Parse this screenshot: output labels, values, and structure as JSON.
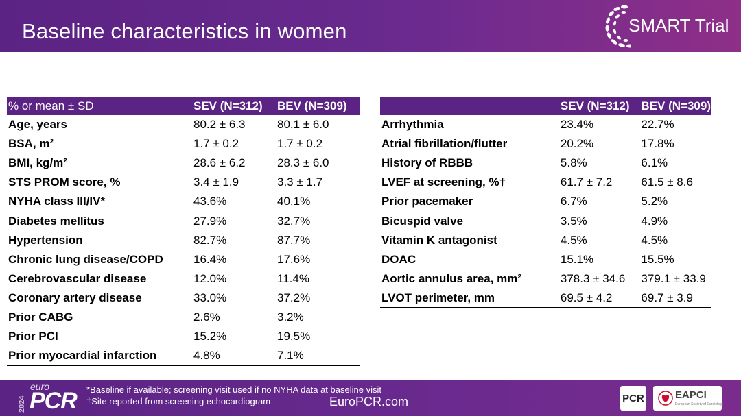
{
  "header": {
    "title": "Baseline characteristics in women"
  },
  "logo": {
    "text": "SMART Trial"
  },
  "left_table": {
    "headers": [
      "% or mean ± SD",
      "SEV (N=312)",
      "BEV (N=309)"
    ],
    "rows": [
      [
        "Age, years",
        "80.2 ± 6.3",
        "80.1 ± 6.0"
      ],
      [
        "BSA, m²",
        "1.7 ± 0.2",
        "1.7 ± 0.2"
      ],
      [
        "BMI, kg/m²",
        "28.6 ± 6.2",
        "28.3 ± 6.0"
      ],
      [
        "STS PROM score, %",
        "3.4 ± 1.9",
        "3.3 ± 1.7"
      ],
      [
        "NYHA class III/IV*",
        "43.6%",
        "40.1%"
      ],
      [
        "Diabetes mellitus",
        "27.9%",
        "32.7%"
      ],
      [
        "Hypertension",
        "82.7%",
        "87.7%"
      ],
      [
        "Chronic lung disease/COPD",
        "16.4%",
        "17.6%"
      ],
      [
        "Cerebrovascular disease",
        "12.0%",
        "11.4%"
      ],
      [
        "Coronary artery disease",
        "33.0%",
        "37.2%"
      ],
      [
        "Prior CABG",
        "2.6%",
        "3.2%"
      ],
      [
        "Prior PCI",
        "15.2%",
        "19.5%"
      ],
      [
        "Prior myocardial infarction",
        "4.8%",
        "7.1%"
      ]
    ]
  },
  "right_table": {
    "headers": [
      "",
      "SEV (N=312)",
      "BEV (N=309)"
    ],
    "rows": [
      [
        "Arrhythmia",
        "23.4%",
        "22.7%"
      ],
      [
        "Atrial fibrillation/flutter",
        "20.2%",
        "17.8%"
      ],
      [
        "History of RBBB",
        "5.8%",
        "6.1%"
      ],
      [
        "LVEF at screening, %†",
        "61.7 ± 7.2",
        "61.5 ± 8.6"
      ],
      [
        "Prior pacemaker",
        "6.7%",
        "5.2%"
      ],
      [
        "Bicuspid valve",
        "3.5%",
        "4.9%"
      ],
      [
        "Vitamin K antagonist",
        "4.5%",
        "4.5%"
      ],
      [
        "DOAC",
        "15.1%",
        "15.5%"
      ],
      [
        "Aortic annulus area, mm²",
        "378.3 ± 34.6",
        "379.1 ± 33.9"
      ],
      [
        "LVOT perimeter, mm",
        "69.5 ± 4.2",
        "69.7 ± 3.9"
      ]
    ]
  },
  "footer": {
    "year": "2024",
    "brand_small": "euro",
    "brand_big": "PCR",
    "note1": "*Baseline if available; screening visit used if no NYHA data at baseline visit",
    "note2": "†Site reported from screening echocardiogram",
    "site": "EuroPCR.com",
    "pcr_badge": "PCR",
    "eapci": "EAPCI",
    "eapci_sub": "European Society of Cardiology"
  }
}
